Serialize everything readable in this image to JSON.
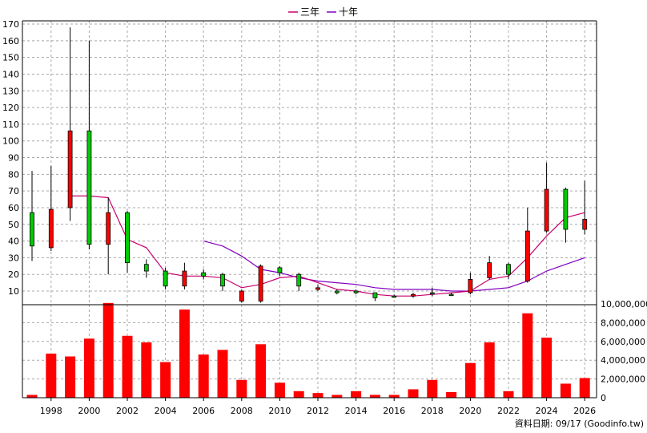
{
  "chart_data": {
    "type": "candlestick_with_volume",
    "legend": {
      "placement": "top-center",
      "items": [
        {
          "label": "三年",
          "color": "#c8006e"
        },
        {
          "label": "十年",
          "color": "#8000c0"
        }
      ]
    },
    "price_axis": {
      "ticks": [
        10,
        20,
        30,
        40,
        50,
        60,
        70,
        80,
        90,
        100,
        110,
        120,
        130,
        140,
        150,
        160,
        170
      ],
      "grid": true
    },
    "volume_axis": {
      "ticks": [
        "0",
        "2,000,000",
        "4,000,000",
        "6,000,000",
        "8,000,000",
        "10,000,000"
      ],
      "range": [
        0,
        10000000
      ],
      "grid": true
    },
    "x_axis": {
      "tick_labels": [
        "1998",
        "2000",
        "2002",
        "2004",
        "2006",
        "2008",
        "2010",
        "2012",
        "2014",
        "2016",
        "2018",
        "2020",
        "2022",
        "2024",
        "2026"
      ],
      "grid": true
    },
    "colors": {
      "up": "#00cc00",
      "down": "#ff0000",
      "wick": "#000000",
      "volume": "#ff0000"
    },
    "candles": [
      {
        "year": 1997,
        "open": 37,
        "close": 57,
        "high": 82,
        "low": 28
      },
      {
        "year": 1998,
        "open": 59,
        "close": 36,
        "high": 85,
        "low": 34
      },
      {
        "year": 1999,
        "open": 106,
        "close": 60,
        "high": 168,
        "low": 52
      },
      {
        "year": 2000,
        "open": 38,
        "close": 106,
        "high": 160,
        "low": 35
      },
      {
        "year": 2001,
        "open": 57,
        "close": 38,
        "high": 66,
        "low": 20
      },
      {
        "year": 2002,
        "open": 27,
        "close": 57,
        "high": 58,
        "low": 21
      },
      {
        "year": 2003,
        "open": 22,
        "close": 26,
        "high": 29,
        "low": 18
      },
      {
        "year": 2004,
        "open": 13,
        "close": 22,
        "high": 24,
        "low": 11
      },
      {
        "year": 2005,
        "open": 22,
        "close": 13,
        "high": 27,
        "low": 11
      },
      {
        "year": 2006,
        "open": 19,
        "close": 21,
        "high": 23,
        "low": 17
      },
      {
        "year": 2007,
        "open": 13,
        "close": 20,
        "high": 21,
        "low": 10
      },
      {
        "year": 2008,
        "open": 10,
        "close": 4,
        "high": 11,
        "low": 3
      },
      {
        "year": 2009,
        "open": 25,
        "close": 4,
        "high": 26,
        "low": 3
      },
      {
        "year": 2010,
        "open": 21,
        "close": 24,
        "high": 25,
        "low": 19
      },
      {
        "year": 2011,
        "open": 13,
        "close": 20,
        "high": 21,
        "low": 10
      },
      {
        "year": 2012,
        "open": 12,
        "close": 11,
        "high": 14,
        "low": 10
      },
      {
        "year": 2013,
        "open": 9,
        "close": 10,
        "high": 11,
        "low": 8
      },
      {
        "year": 2014,
        "open": 9,
        "close": 10,
        "high": 11,
        "low": 8
      },
      {
        "year": 2015,
        "open": 6,
        "close": 9,
        "high": 9,
        "low": 4
      },
      {
        "year": 2016,
        "open": 7,
        "close": 7,
        "high": 8,
        "low": 6
      },
      {
        "year": 2017,
        "open": 8,
        "close": 7,
        "high": 9,
        "low": 6
      },
      {
        "year": 2018,
        "open": 9,
        "close": 9,
        "high": 12,
        "low": 7
      },
      {
        "year": 2019,
        "open": 8,
        "close": 8,
        "high": 9,
        "low": 7
      },
      {
        "year": 2020,
        "open": 17,
        "close": 9,
        "high": 21,
        "low": 8
      },
      {
        "year": 2021,
        "open": 27,
        "close": 18,
        "high": 31,
        "low": 17
      },
      {
        "year": 2022,
        "open": 20,
        "close": 26,
        "high": 27,
        "low": 17
      },
      {
        "year": 2023,
        "open": 46,
        "close": 16,
        "high": 60,
        "low": 15
      },
      {
        "year": 2024,
        "open": 71,
        "close": 46,
        "high": 87,
        "low": 45
      },
      {
        "year": 2025,
        "open": 47,
        "close": 71,
        "high": 72,
        "low": 39
      },
      {
        "year": 2026,
        "open": 53,
        "close": 47,
        "high": 76,
        "low": 44
      }
    ],
    "ma3_years": [
      1999,
      2000,
      2001,
      2002,
      2003,
      2004,
      2005,
      2006,
      2007,
      2008,
      2009,
      2010,
      2011,
      2012,
      2013,
      2014,
      2015,
      2016,
      2017,
      2018,
      2019,
      2020,
      2021,
      2022,
      2023,
      2024,
      2025,
      2026
    ],
    "ma3_values": [
      67,
      67,
      66,
      41,
      36,
      21,
      19,
      19,
      18,
      12,
      14,
      18,
      19,
      15,
      11,
      10,
      8,
      7,
      7,
      8,
      9,
      10,
      17,
      19,
      30,
      43,
      54,
      57
    ],
    "ma10_years": [
      2006,
      2007,
      2008,
      2009,
      2010,
      2011,
      2012,
      2013,
      2014,
      2015,
      2016,
      2017,
      2018,
      2019,
      2020,
      2021,
      2022,
      2023,
      2024,
      2025,
      2026
    ],
    "ma10_values": [
      40,
      37,
      31,
      23,
      21,
      18,
      16,
      15,
      14,
      12,
      11,
      11,
      11,
      10,
      10,
      11,
      12,
      16,
      22,
      26,
      30
    ],
    "volume_years": [
      1997,
      1998,
      1999,
      2000,
      2001,
      2002,
      2003,
      2004,
      2005,
      2006,
      2007,
      2008,
      2009,
      2010,
      2011,
      2012,
      2013,
      2014,
      2015,
      2016,
      2017,
      2018,
      2019,
      2020,
      2021,
      2022,
      2023,
      2024,
      2025,
      2026
    ],
    "volume_values": [
      300000,
      4700000,
      4400000,
      6300000,
      10100000,
      6600000,
      5900000,
      3800000,
      9400000,
      4600000,
      5100000,
      1900000,
      5700000,
      1600000,
      700000,
      500000,
      300000,
      700000,
      300000,
      300000,
      900000,
      1900000,
      600000,
      3700000,
      5900000,
      700000,
      9000000,
      6400000,
      1500000,
      2100000
    ]
  },
  "footer": {
    "source": "資料日期: 09/17  (Goodinfo.tw)"
  }
}
